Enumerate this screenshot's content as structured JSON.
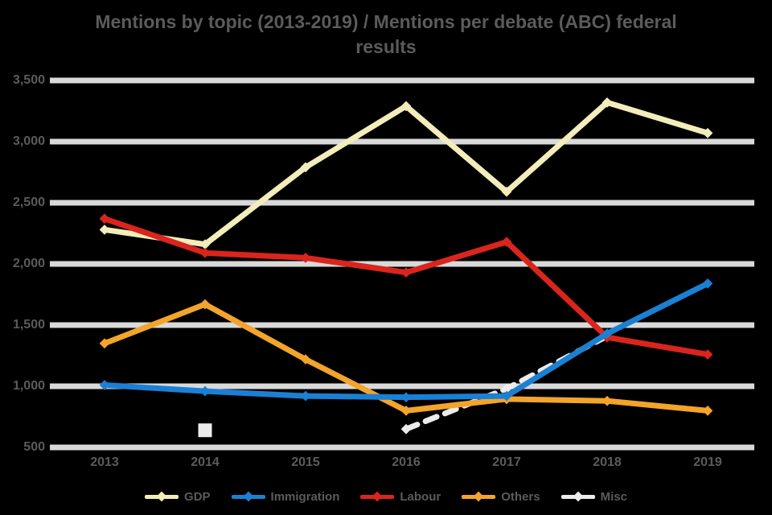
{
  "title": {
    "line1": "Mentions by topic (2013-2019) / Mentions per debate (ABC) federal",
    "line2": "results"
  },
  "chart_data": {
    "type": "line",
    "title": "Mentions by topic (2013-2019) / Mentions per debate (ABC) federal results",
    "xlabel": "",
    "ylabel": "",
    "grid": true,
    "legend_position": "bottom",
    "x_labels": [
      "2013",
      "2014",
      "2015",
      "2016",
      "2017",
      "2018",
      "2019"
    ],
    "y_tick_labels": [
      "3,500",
      "3,000",
      "2,500",
      "2,000",
      "1,500",
      "1,000",
      "500"
    ],
    "ylim": [
      500,
      3500
    ],
    "series": [
      {
        "name": "GDP",
        "color": "#f3edbb",
        "dashed": false,
        "values": [
          2280,
          2160,
          2790,
          3290,
          2590,
          3320,
          3070
        ]
      },
      {
        "name": "Immigration",
        "color": "#1a80d4",
        "dashed": false,
        "values": [
          1010,
          960,
          920,
          910,
          920,
          1430,
          1840
        ]
      },
      {
        "name": "Labour",
        "color": "#da251c",
        "dashed": false,
        "values": [
          2370,
          2090,
          2050,
          1930,
          2180,
          1400,
          1260
        ]
      },
      {
        "name": "Others",
        "color": "#f3a42a",
        "dashed": false,
        "values": [
          1350,
          1670,
          1220,
          800,
          895,
          880,
          800
        ]
      },
      {
        "name": "Misc",
        "color": "#ececec",
        "dashed": true,
        "values": [
          null,
          640,
          null,
          650,
          980,
          1410,
          null
        ]
      }
    ],
    "colors": {
      "gridline": "#d9d9d9",
      "text": "#5b5b5b",
      "background": "#000000"
    }
  }
}
